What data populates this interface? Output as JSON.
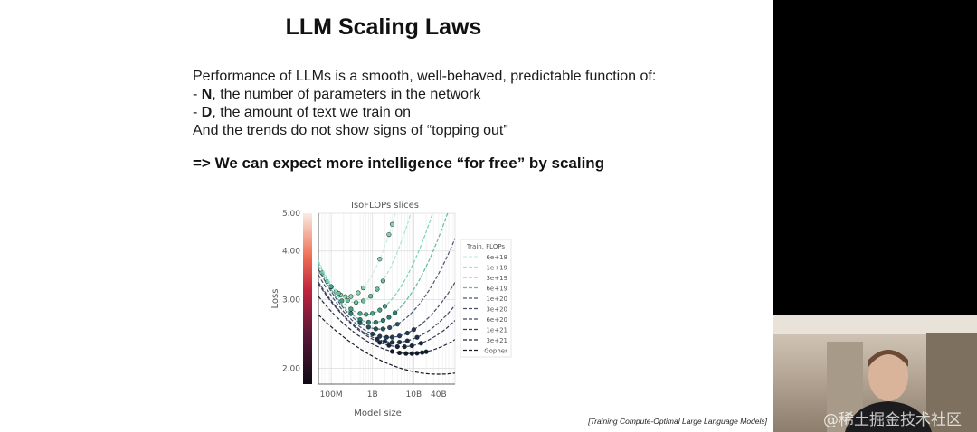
{
  "slide": {
    "title": "LLM Scaling Laws",
    "lines": [
      "Performance of LLMs is a smooth, well-behaved, predictable function of:",
      "- N, the number of parameters in the network",
      "- D, the amount of text we train on",
      "And the trends do not show signs of “topping out”"
    ],
    "bullets": [
      {
        "prefix": "- ",
        "bold": "N",
        "rest": ", the number of parameters in the network"
      },
      {
        "prefix": "- ",
        "bold": "D",
        "rest": ", the amount of text we train on"
      }
    ],
    "conclusion": "=> We can expect more intelligence “for free” by scaling",
    "citation": "[Training Compute-Optimal Large Language Models]"
  },
  "webcam": {
    "watermark": "@稀土掘金技术社区"
  },
  "chart_data": {
    "type": "scatter",
    "title": "IsoFLOPs slices",
    "xlabel": "Model size",
    "ylabel": "Loss",
    "xscale": "log",
    "yscale": "log",
    "xlim": [
      49000000,
      100000000000
    ],
    "ylim": [
      1.82,
      5.0
    ],
    "xticks": [
      {
        "value": 100000000,
        "label": "100M"
      },
      {
        "value": 1000000000,
        "label": "1B"
      },
      {
        "value": 10000000000,
        "label": "10B"
      },
      {
        "value": 40000000000,
        "label": "40B"
      }
    ],
    "yticks": [
      {
        "value": 5.0,
        "label": "5.00"
      },
      {
        "value": 4.0,
        "label": "4.00"
      },
      {
        "value": 3.0,
        "label": "3.00"
      },
      {
        "value": 2.0,
        "label": "2.00"
      }
    ],
    "grid": true,
    "legend_title": "Train. FLOPs",
    "legend_position": "right",
    "series": [
      {
        "name": "6e+18",
        "color": "#c9efe0",
        "opt_size": 250000000,
        "min_loss": 3.05,
        "curvature": 0.16,
        "points": [
          60000000,
          80000000,
          100000000,
          130000000,
          170000000,
          220000000,
          300000000,
          450000000,
          600000000,
          1500000000,
          2500000000,
          3000000000
        ]
      },
      {
        "name": "1e+19",
        "color": "#a5e6cc",
        "opt_size": 400000000,
        "min_loss": 2.95,
        "curvature": 0.13,
        "points": [
          150000000,
          250000000,
          400000000,
          600000000,
          900000000,
          1300000000,
          1800000000
        ]
      },
      {
        "name": "3e+19",
        "color": "#74d3b5",
        "opt_size": 700000000,
        "min_loss": 2.75,
        "curvature": 0.1,
        "points": [
          100000000,
          180000000,
          300000000,
          500000000,
          700000000,
          1000000000,
          1500000000,
          2000000000
        ]
      },
      {
        "name": "6e+19",
        "color": "#5fbaa8",
        "opt_size": 1000000000,
        "min_loss": 2.62,
        "curvature": 0.085,
        "points": [
          300000000,
          500000000,
          800000000,
          1200000000,
          1800000000,
          2500000000,
          3500000000
        ]
      },
      {
        "name": "1e+20",
        "color": "#4a5670",
        "opt_size": 1500000000,
        "min_loss": 2.52,
        "curvature": 0.07,
        "points": [
          500000000,
          800000000,
          1200000000,
          1800000000,
          2600000000,
          4000000000
        ]
      },
      {
        "name": "3e+20",
        "color": "#454f6b",
        "opt_size": 2500000000,
        "min_loss": 2.4,
        "curvature": 0.055,
        "points": [
          1000000000,
          1500000000,
          2200000000,
          3000000000,
          4500000000,
          7000000000,
          10000000000
        ]
      },
      {
        "name": "6e+20",
        "color": "#3e4763",
        "opt_size": 3500000000,
        "min_loss": 2.33,
        "curvature": 0.045,
        "points": [
          1300000000,
          2000000000,
          3000000000,
          4500000000,
          7000000000,
          12000000000
        ]
      },
      {
        "name": "1e+21",
        "color": "#353b55",
        "opt_size": 5000000000,
        "min_loss": 2.27,
        "curvature": 0.04,
        "points": [
          1500000000,
          2500000000,
          4000000000,
          6000000000,
          9000000000,
          15000000000
        ]
      },
      {
        "name": "3e+21",
        "color": "#24263a",
        "opt_size": 8000000000,
        "min_loss": 2.18,
        "curvature": 0.03,
        "points": [
          3000000000,
          4500000000,
          6500000000,
          9000000000,
          12000000000,
          16000000000,
          20000000000
        ]
      },
      {
        "name": "Gopher",
        "color": "#1a1a22",
        "opt_size": 40000000000,
        "min_loss": 1.93,
        "curvature": 0.018,
        "points": []
      }
    ],
    "colorbar": {
      "range": [
        1.82,
        5.0
      ]
    }
  }
}
